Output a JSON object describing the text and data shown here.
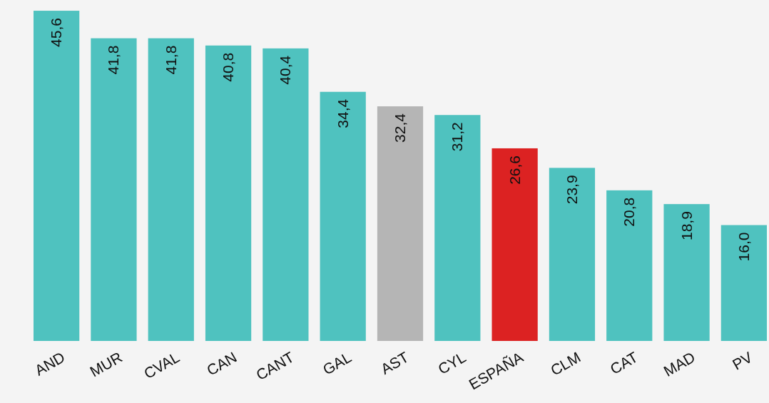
{
  "chart_data": {
    "type": "bar",
    "categories": [
      "AND",
      "MUR",
      "CVAL",
      "CAN",
      "CANT",
      "GAL",
      "AST",
      "CYL",
      "ESPAÑA",
      "CLM",
      "CAT",
      "MAD",
      "PV"
    ],
    "values": [
      45.6,
      41.8,
      41.8,
      40.8,
      40.4,
      34.4,
      32.4,
      31.2,
      26.6,
      23.9,
      20.8,
      18.9,
      16.0
    ],
    "colors": [
      "#4fc2bf",
      "#4fc2bf",
      "#4fc2bf",
      "#4fc2bf",
      "#4fc2bf",
      "#4fc2bf",
      "#b5b5b5",
      "#4fc2bf",
      "#dc2222",
      "#4fc2bf",
      "#4fc2bf",
      "#4fc2bf",
      "#4fc2bf"
    ],
    "value_labels": [
      "45,6",
      "41,8",
      "41,8",
      "40,8",
      "40,4",
      "34,4",
      "32,4",
      "31,2",
      "26,6",
      "23,9",
      "20,8",
      "18,9",
      "16,0"
    ],
    "ylim": [
      0,
      46
    ],
    "tick_labels": "x"
  }
}
